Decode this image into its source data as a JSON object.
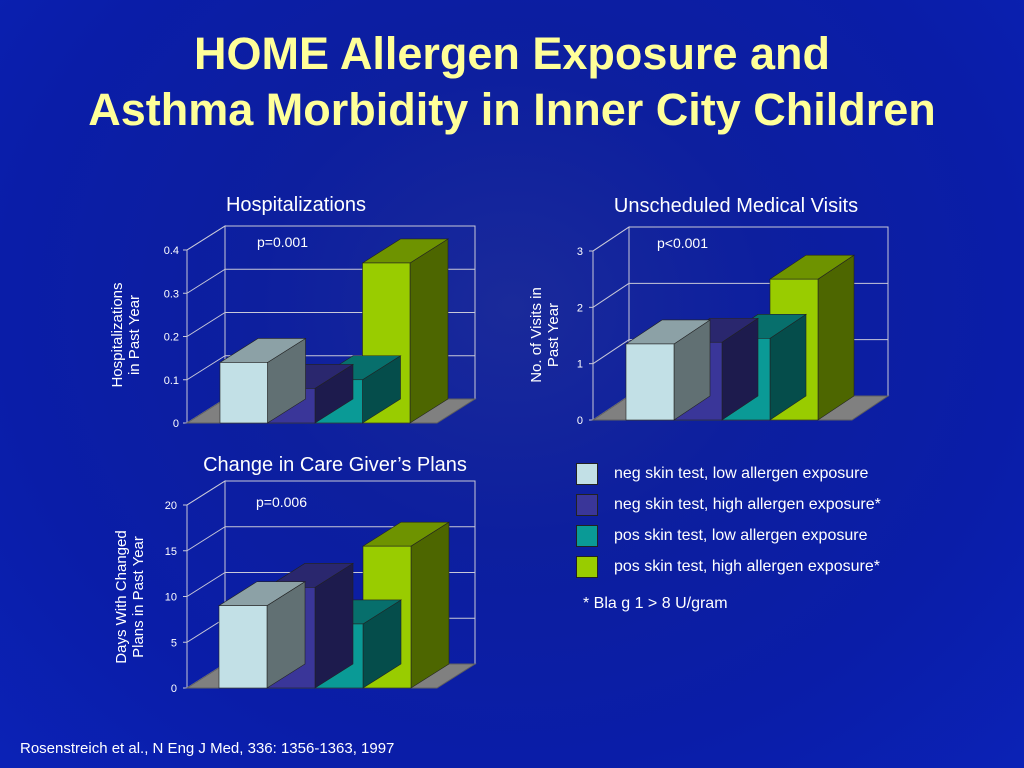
{
  "title_lines": [
    "HOME Allergen Exposure and",
    "Asthma Morbidity in Inner City Children"
  ],
  "colors": {
    "background": "#0d1f9e",
    "title": "#ffff99",
    "series": [
      "#c2e0e6",
      "#3a3699",
      "#0a9a96",
      "#99cc00"
    ]
  },
  "legend": [
    "neg skin test, low allergen exposure",
    "neg skin test, high allergen exposure*",
    "pos skin test, low allergen exposure",
    "pos skin test, high allergen exposure*"
  ],
  "footnote": "*  Bla g 1 > 8 U/gram",
  "citation": "Rosenstreich et al., N Eng J Med, 336: 1356-1363, 1997",
  "chart_data": [
    {
      "type": "bar",
      "title": "Hospitalizations",
      "ylabel": "Hospitalizations in Past Year",
      "ylabel_lines": [
        "Hospitalizations",
        "in Past Year"
      ],
      "annotation": "p=0.001",
      "ylim": [
        0,
        0.4
      ],
      "ticks": [
        0,
        0.1,
        0.2,
        0.3,
        0.4
      ],
      "tick_labels": [
        "0",
        "0.1",
        "0.2",
        "0.3",
        "0.4"
      ],
      "series": [
        {
          "name": "neg skin test, low allergen exposure",
          "values": [
            0.14
          ]
        },
        {
          "name": "neg skin test, high allergen exposure*",
          "values": [
            0.08
          ]
        },
        {
          "name": "pos skin test, low allergen exposure",
          "values": [
            0.1
          ]
        },
        {
          "name": "pos skin test, high allergen exposure*",
          "values": [
            0.37
          ]
        }
      ]
    },
    {
      "type": "bar",
      "title": "Unscheduled Medical Visits",
      "ylabel": "No. of Visits in Past Year",
      "ylabel_lines": [
        "No. of Visits in",
        "Past Year"
      ],
      "annotation": "p<0.001",
      "ylim": [
        0,
        3
      ],
      "ticks": [
        0,
        1,
        2,
        3
      ],
      "tick_labels": [
        "0",
        "1",
        "2",
        "3"
      ],
      "series": [
        {
          "name": "neg skin test, low allergen exposure",
          "values": [
            1.35
          ]
        },
        {
          "name": "neg skin test, high allergen exposure*",
          "values": [
            1.38
          ]
        },
        {
          "name": "pos skin test, low allergen exposure",
          "values": [
            1.45
          ]
        },
        {
          "name": "pos skin test, high allergen exposure*",
          "values": [
            2.5
          ]
        }
      ]
    },
    {
      "type": "bar",
      "title": "Change in Care Giver’s Plans",
      "ylabel": "Days With Changed Plans in Past Year",
      "ylabel_lines": [
        "Days With Changed",
        "Plans in Past Year"
      ],
      "annotation": "p=0.006",
      "ylim": [
        0,
        20
      ],
      "ticks": [
        0,
        5,
        10,
        15,
        20
      ],
      "tick_labels": [
        "0",
        "5",
        "10",
        "15",
        "20"
      ],
      "series": [
        {
          "name": "neg skin test, low allergen exposure",
          "values": [
            9
          ]
        },
        {
          "name": "neg skin test, high allergen exposure*",
          "values": [
            11
          ]
        },
        {
          "name": "pos skin test, low allergen exposure",
          "values": [
            7
          ]
        },
        {
          "name": "pos skin test, high allergen exposure*",
          "values": [
            15.5
          ]
        }
      ]
    }
  ]
}
